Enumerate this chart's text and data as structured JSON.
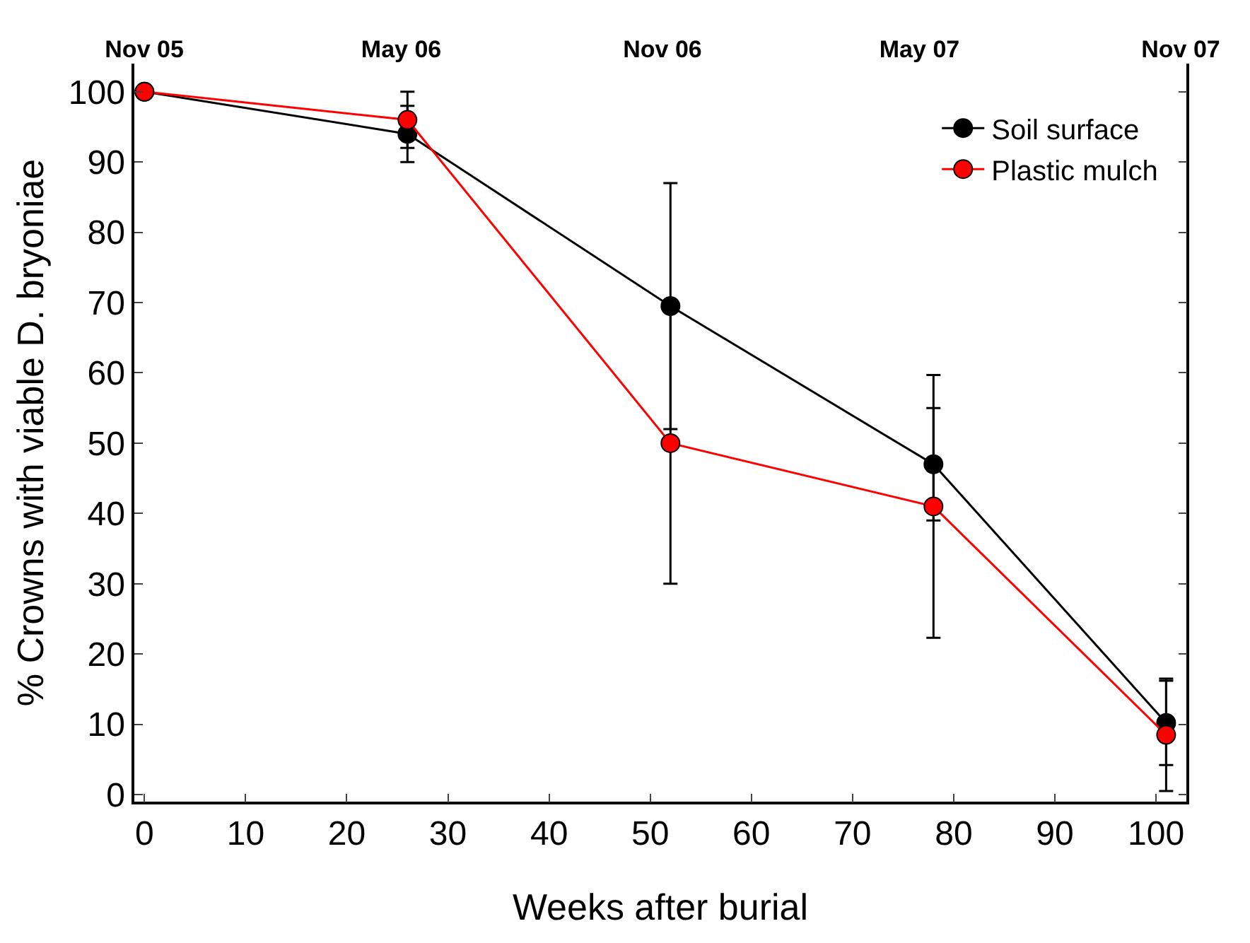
{
  "chart_data": {
    "type": "line",
    "xlabel": "Weeks after burial",
    "ylabel": "% Crowns with viable D. bryoniae",
    "xlim": [
      -1,
      103
    ],
    "ylim": [
      -1,
      104
    ],
    "xticks": [
      0,
      10,
      20,
      30,
      40,
      50,
      60,
      70,
      80,
      90,
      100
    ],
    "yticks": [
      0,
      10,
      20,
      30,
      40,
      50,
      60,
      70,
      80,
      90,
      100
    ],
    "x2lim": [
      "2005-10-25",
      "2007-11-05"
    ],
    "x2ticks": [
      {
        "value": "2005-11",
        "label": "Nov 05"
      },
      {
        "value": "2006-05",
        "label": "May 06"
      },
      {
        "value": "2006-11",
        "label": "Nov 06"
      },
      {
        "value": "2007-05",
        "label": "May 07"
      },
      {
        "value": "2007-11",
        "label": "Nov 07"
      }
    ],
    "x": [
      0,
      26,
      52,
      78,
      101
    ],
    "series": [
      {
        "name": "Soil surface",
        "color": "#000000",
        "values": [
          100,
          94,
          69.5,
          47,
          10.2
        ],
        "errors": [
          null,
          4,
          17.5,
          8,
          6
        ]
      },
      {
        "name": "Plastic mulch",
        "color": "#ff0000",
        "values": [
          100,
          96,
          50,
          41,
          8.5
        ],
        "errors": [
          null,
          4,
          20,
          18.7,
          8
        ]
      }
    ],
    "legend": "top right",
    "marker": "circle",
    "line_style": "solid"
  }
}
